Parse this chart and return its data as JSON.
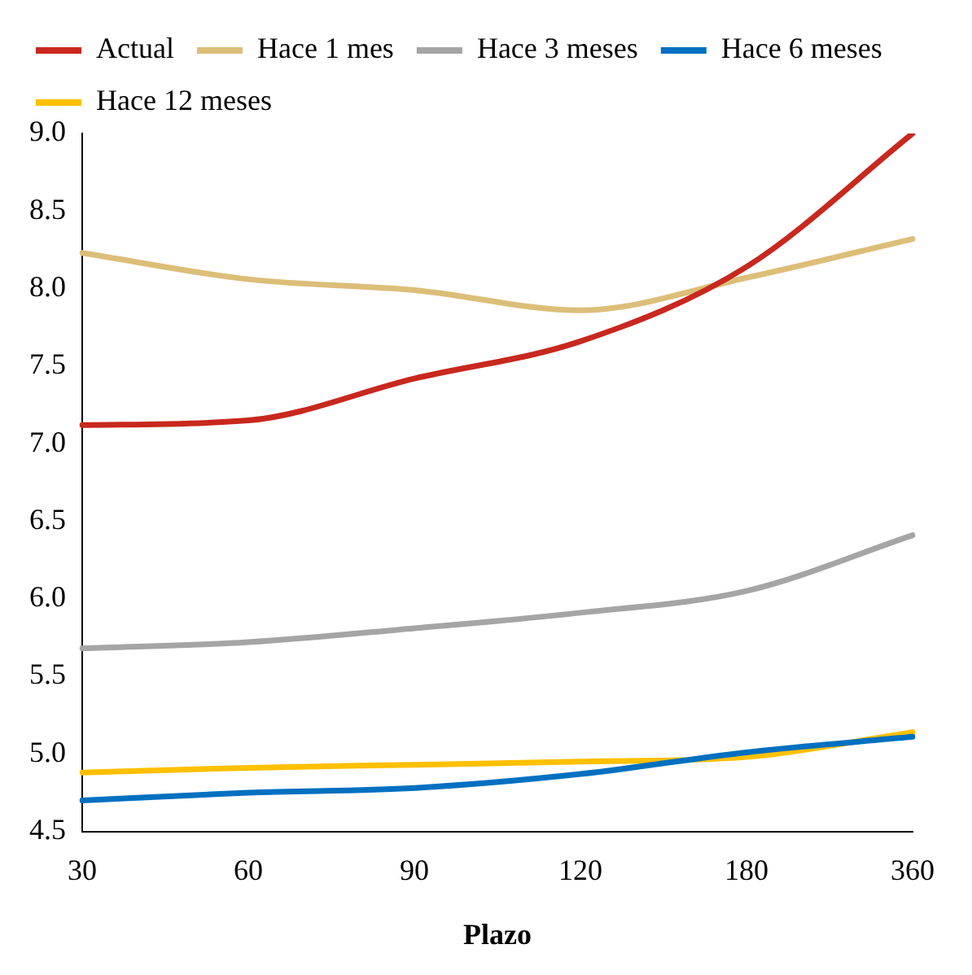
{
  "chart_data": {
    "type": "line",
    "xlabel": "Plazo",
    "categories": [
      "30",
      "60",
      "90",
      "120",
      "180",
      "360"
    ],
    "series": [
      {
        "name": "Actual",
        "color": "#c8281e",
        "values": [
          7.12,
          7.15,
          7.42,
          7.66,
          8.14,
          9.0
        ]
      },
      {
        "name": "Hace 1 mes",
        "color": "#dcbe78",
        "values": [
          8.23,
          8.06,
          7.99,
          7.86,
          8.07,
          8.32
        ]
      },
      {
        "name": "Hace 3 meses",
        "color": "#a5a5a5",
        "values": [
          5.68,
          5.72,
          5.81,
          5.91,
          6.05,
          6.41
        ]
      },
      {
        "name": "Hace 6 meses",
        "color": "#0070c0",
        "values": [
          4.7,
          4.75,
          4.78,
          4.87,
          5.01,
          5.11
        ]
      },
      {
        "name": "Hace 12 meses",
        "color": "#ffc000",
        "values": [
          4.88,
          4.91,
          4.93,
          4.95,
          4.98,
          5.14
        ]
      }
    ],
    "ylim": [
      4.5,
      9.0
    ],
    "yticks": [
      {
        "value": 4.5,
        "label": "4.5"
      },
      {
        "value": 5,
        "label": "5.0"
      },
      {
        "value": 5.5,
        "label": "5.5"
      },
      {
        "value": 6,
        "label": "6.0"
      },
      {
        "value": 6.5,
        "label": "6.5"
      },
      {
        "value": 7,
        "label": "7.0"
      },
      {
        "value": 7.5,
        "label": "7.5"
      },
      {
        "value": 8,
        "label": "8.0"
      },
      {
        "value": 8.5,
        "label": "8.5"
      },
      {
        "value": 9,
        "label": "9.0"
      }
    ],
    "grid": false,
    "legend": "top",
    "marker": "none",
    "line_style": "solid"
  }
}
